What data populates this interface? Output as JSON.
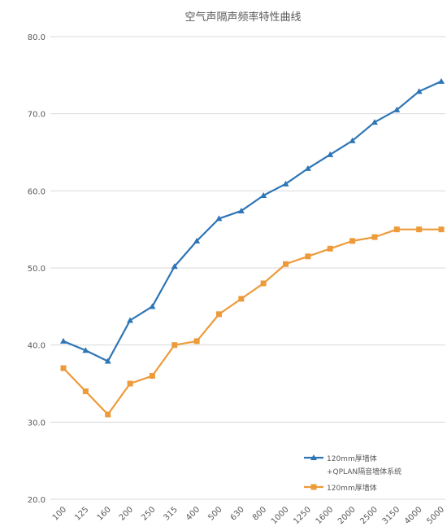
{
  "chart_data": {
    "type": "line",
    "title": "空气声隔声频率特性曲线",
    "categories": [
      "100",
      "125",
      "160",
      "200",
      "250",
      "315",
      "400",
      "500",
      "630",
      "800",
      "1000",
      "1250",
      "1600",
      "2000",
      "2500",
      "3150",
      "4000",
      "5000"
    ],
    "ylim": [
      20,
      80
    ],
    "yticks": [
      "20.0",
      "30.0",
      "40.0",
      "50.0",
      "60.0",
      "70.0",
      "80.0"
    ],
    "grid": true,
    "legend_position": "bottom-right",
    "series": [
      {
        "name_lines": [
          "120mm厚墙体",
          "+QPLAN隔音墙体系统"
        ],
        "color": "#2e75b6",
        "marker": "triangle",
        "values": [
          40.5,
          39.3,
          37.9,
          43.2,
          45.0,
          50.2,
          53.5,
          56.4,
          57.4,
          59.4,
          60.9,
          62.9,
          64.7,
          66.5,
          68.9,
          70.5,
          72.9,
          74.2
        ]
      },
      {
        "name_lines": [
          "120mm厚墙体"
        ],
        "color": "#ed9b3a",
        "marker": "square",
        "values": [
          37.0,
          34.0,
          31.0,
          35.0,
          36.0,
          40.0,
          40.5,
          44.0,
          46.0,
          48.0,
          50.5,
          51.5,
          52.5,
          53.5,
          54.0,
          55.0,
          55.0,
          55.0
        ]
      }
    ]
  }
}
